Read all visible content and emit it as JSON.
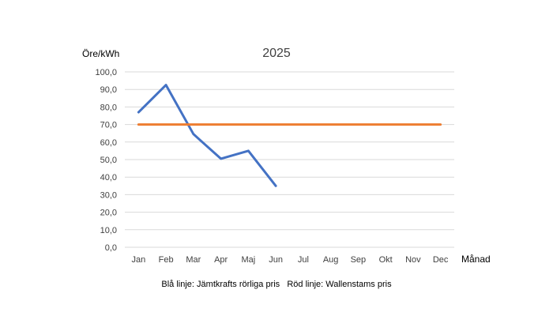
{
  "chart_data": {
    "type": "line",
    "title": "2025",
    "ylabel": "Öre/kWh",
    "xlabel": "Månad",
    "categories": [
      "Jan",
      "Feb",
      "Mar",
      "Apr",
      "Maj",
      "Jun",
      "Jul",
      "Aug",
      "Sep",
      "Okt",
      "Nov",
      "Dec"
    ],
    "ylim": [
      0,
      100
    ],
    "y_ticks": [
      "0,0",
      "10,0",
      "20,0",
      "30,0",
      "40,0",
      "50,0",
      "60,0",
      "70,0",
      "80,0",
      "90,0",
      "100,0"
    ],
    "grid": true,
    "series": [
      {
        "color": "#4472C4",
        "values": [
          77,
          92.5,
          64.5,
          50.5,
          55,
          35,
          null,
          null,
          null,
          null,
          null,
          null
        ]
      },
      {
        "color": "#ED7D31",
        "values": [
          70,
          70,
          70,
          70,
          70,
          70,
          70,
          70,
          70,
          70,
          70,
          70
        ]
      }
    ],
    "caption": "Blå linje: Jämtkrafts rörliga pris   Röd linje: Wallenstams pris"
  }
}
